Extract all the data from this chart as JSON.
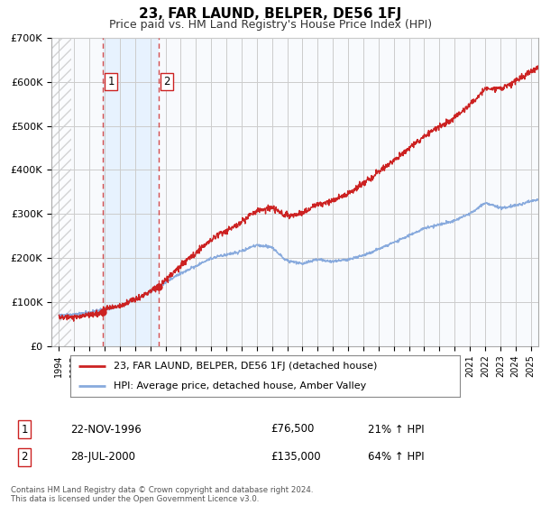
{
  "title": "23, FAR LAUND, BELPER, DE56 1FJ",
  "subtitle": "Price paid vs. HM Land Registry's House Price Index (HPI)",
  "legend_line1": "23, FAR LAUND, BELPER, DE56 1FJ (detached house)",
  "legend_line2": "HPI: Average price, detached house, Amber Valley",
  "sale1_label": "1",
  "sale1_date": "22-NOV-1996",
  "sale1_price": "£76,500",
  "sale1_hpi": "21% ↑ HPI",
  "sale1_year": 1996.9,
  "sale1_value": 76500,
  "sale2_label": "2",
  "sale2_date": "28-JUL-2000",
  "sale2_price": "£135,000",
  "sale2_hpi": "64% ↑ HPI",
  "sale2_year": 2000.57,
  "sale2_value": 135000,
  "ylim": [
    0,
    700000
  ],
  "xlim_start": 1993.5,
  "xlim_end": 2025.5,
  "price_line_color": "#cc2222",
  "hpi_line_color": "#88aadd",
  "hatch_color": "#bbbbbb",
  "highlight_color": "#ddeeff",
  "grid_color": "#cccccc",
  "footnote": "Contains HM Land Registry data © Crown copyright and database right 2024.\nThis data is licensed under the Open Government Licence v3.0.",
  "background_color": "#ffffff"
}
